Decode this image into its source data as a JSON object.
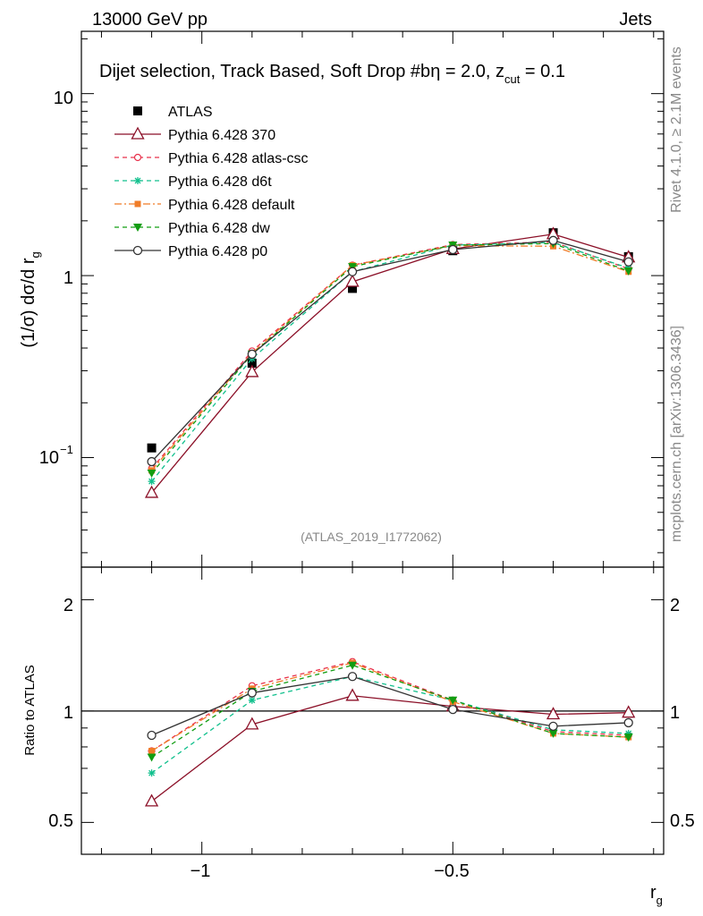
{
  "header": {
    "left_label": "13000 GeV pp",
    "right_label": "Jets"
  },
  "side_labels": {
    "rivet": "Rivet 4.1.0, ≥ 2.1M events",
    "mcplots": "mcplots.cern.ch [arXiv:1306.3436]"
  },
  "chart_data": [
    {
      "type": "line",
      "title": "Dijet selection, Track Based, Soft Drop #b",
      "title_suffix_eta": "η = 2.0, z",
      "title_suffix_sub": "cut",
      "title_suffix_end": " = 0.1",
      "ylabel": "(1/σ) dσ/d r",
      "ylabel_sub": "g",
      "yscale": "log",
      "ylim": [
        0.025,
        22
      ],
      "xlim": [
        -1.24,
        -0.08
      ],
      "analysis_id": "(ATLAS_2019_I1772062)",
      "y_tick_labels": [
        "10",
        "1",
        "10"
      ],
      "y_tick_exp": "−1",
      "x": [
        -1.1,
        -0.9,
        -0.7,
        -0.5,
        -0.3,
        -0.15
      ],
      "series": [
        {
          "name": "ATLAS",
          "color": "#000000",
          "style": "data",
          "values": [
            0.113,
            0.33,
            0.85,
            1.37,
            1.72,
            1.27
          ]
        },
        {
          "name": "Pythia 6.428 370",
          "color": "#8b0f27",
          "style": "solid",
          "marker": "triangle",
          "values": [
            0.064,
            0.295,
            0.925,
            1.4,
            1.69,
            1.26
          ]
        },
        {
          "name": "Pythia 6.428 atlas-csc",
          "color": "#e8304a",
          "style": "dashed",
          "marker": "circle-small",
          "values": [
            0.087,
            0.385,
            1.14,
            1.48,
            1.53,
            1.09
          ]
        },
        {
          "name": "Pythia 6.428 d6t",
          "color": "#11c08d",
          "style": "dashed",
          "marker": "star",
          "values": [
            0.074,
            0.35,
            1.05,
            1.47,
            1.52,
            1.1
          ]
        },
        {
          "name": "Pythia 6.428 default",
          "color": "#f07c28",
          "style": "dashdot",
          "marker": "square",
          "values": [
            0.085,
            0.375,
            1.14,
            1.46,
            1.45,
            1.05
          ]
        },
        {
          "name": "Pythia 6.428 dw",
          "color": "#119d11",
          "style": "dashed",
          "marker": "triangle-down",
          "values": [
            0.082,
            0.37,
            1.12,
            1.47,
            1.5,
            1.06
          ]
        },
        {
          "name": "Pythia 6.428 p0",
          "color": "#333333",
          "style": "solid",
          "marker": "circle",
          "values": [
            0.095,
            0.37,
            1.05,
            1.39,
            1.56,
            1.19
          ]
        }
      ]
    },
    {
      "type": "line",
      "title": "",
      "ylabel": "Ratio to ATLAS",
      "xlabel": "r",
      "xlabel_sub": "g",
      "yscale": "log",
      "ylim": [
        0.41,
        2.45
      ],
      "xlim": [
        -1.24,
        -0.08
      ],
      "x_tick_labels": [
        "−1",
        "−0.5"
      ],
      "y_tick_labels": [
        "0.5",
        "1",
        "2"
      ],
      "x": [
        -1.1,
        -0.9,
        -0.7,
        -0.5,
        -0.3,
        -0.15
      ],
      "reference_line": 1,
      "series": [
        {
          "name": "Pythia 6.428 370",
          "color": "#8b0f27",
          "style": "solid",
          "marker": "triangle",
          "values": [
            0.57,
            0.92,
            1.1,
            1.03,
            0.98,
            0.99
          ]
        },
        {
          "name": "Pythia 6.428 atlas-csc",
          "color": "#e8304a",
          "style": "dashed",
          "marker": "circle-small",
          "values": [
            0.78,
            1.17,
            1.36,
            1.07,
            0.88,
            0.86
          ]
        },
        {
          "name": "Pythia 6.428 d6t",
          "color": "#11c08d",
          "style": "dashed",
          "marker": "star",
          "values": [
            0.68,
            1.07,
            1.24,
            1.07,
            0.89,
            0.87
          ]
        },
        {
          "name": "Pythia 6.428 default",
          "color": "#f07c28",
          "style": "dashdot",
          "marker": "square",
          "values": [
            0.78,
            1.15,
            1.35,
            1.06,
            0.87,
            0.85
          ]
        },
        {
          "name": "Pythia 6.428 dw",
          "color": "#119d11",
          "style": "dashed",
          "marker": "triangle-down",
          "values": [
            0.75,
            1.13,
            1.33,
            1.07,
            0.87,
            0.85
          ]
        },
        {
          "name": "Pythia 6.428 p0",
          "color": "#333333",
          "style": "solid",
          "marker": "circle",
          "values": [
            0.86,
            1.12,
            1.24,
            1.01,
            0.91,
            0.93
          ]
        }
      ]
    }
  ]
}
